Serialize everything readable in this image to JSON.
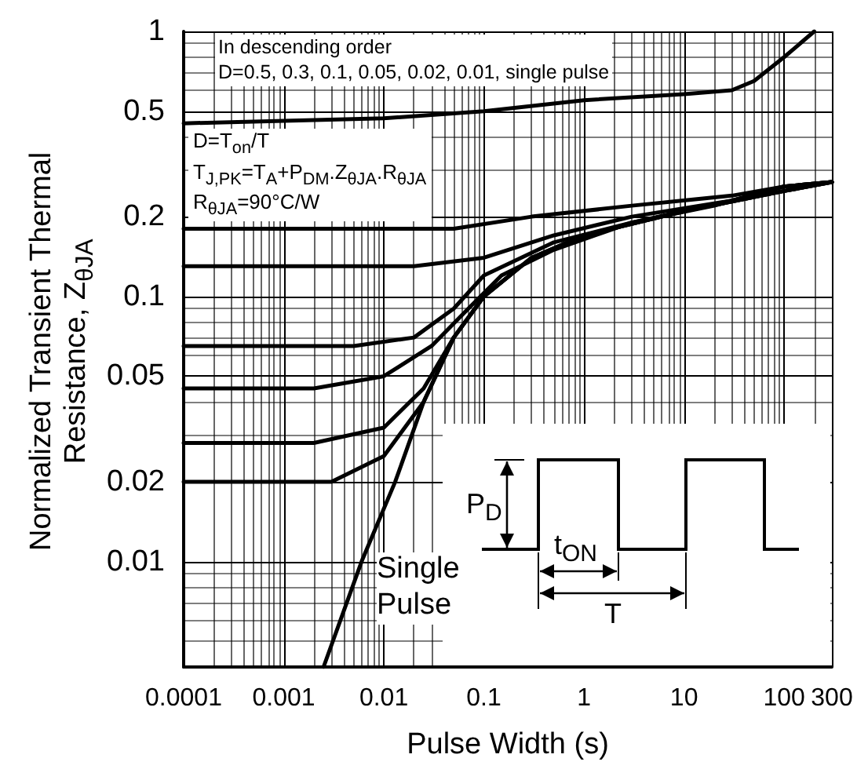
{
  "chart_data": {
    "type": "line",
    "xlabel": "Pulse Width (s)",
    "ylabel": "Normalized Transient Thermal Resistance, Z$_{θJA}$",
    "log": "xy",
    "grid": true,
    "xlim": [
      0.0001,
      300
    ],
    "xticks": [
      0.0001,
      0.001,
      0.01,
      0.1,
      1,
      10,
      100,
      300
    ],
    "ylim": [
      0.004,
      1
    ],
    "yticks": [
      0.01,
      0.02,
      0.05,
      0.1,
      0.2,
      0.5,
      1
    ],
    "annotations": [
      "In descending order",
      "D=0.5, 0.3, 0.1, 0.05, 0.02, 0.01, single pulse",
      "D=T$_{on}$/T",
      "T$_{J,PK}$=T$_{A}$+P$_{DM}$.Z$_{θJA}$.R$_{θJA}$",
      "R$_{θJA}$=90°C/W",
      "P$_{D}$",
      "t$_{ON}$",
      "T",
      "Single Pulse"
    ],
    "series": [
      {
        "color": "#000000",
        "x": [
          0.0001,
          0.001,
          0.01,
          0.1,
          1,
          10,
          30,
          50,
          100,
          200
        ],
        "values": [
          0.45,
          0.46,
          0.47,
          0.5,
          0.55,
          0.58,
          0.6,
          0.65,
          0.8,
          1
        ]
      },
      {
        "color": "#000000",
        "x": [
          0.0001,
          0.01,
          0.05,
          0.3,
          3,
          30,
          100,
          300
        ],
        "values": [
          0.18,
          0.18,
          0.18,
          0.2,
          0.22,
          0.24,
          0.26,
          0.27
        ]
      },
      {
        "color": "#000000",
        "x": [
          0.0001,
          0.01,
          0.02,
          0.1,
          0.5,
          3,
          30,
          100,
          300
        ],
        "values": [
          0.13,
          0.13,
          0.13,
          0.14,
          0.17,
          0.2,
          0.23,
          0.26,
          0.27
        ]
      },
      {
        "color": "#000000",
        "x": [
          0.0001,
          0.005,
          0.02,
          0.05,
          0.1,
          0.5,
          3,
          30,
          100,
          300
        ],
        "values": [
          0.065,
          0.065,
          0.07,
          0.09,
          0.12,
          0.16,
          0.19,
          0.23,
          0.26,
          0.27
        ]
      },
      {
        "color": "#000000",
        "x": [
          0.0001,
          0.002,
          0.01,
          0.03,
          0.07,
          0.15,
          0.5,
          3,
          20,
          100,
          300
        ],
        "values": [
          0.045,
          0.045,
          0.05,
          0.065,
          0.09,
          0.12,
          0.15,
          0.19,
          0.22,
          0.26,
          0.27
        ]
      },
      {
        "color": "#000000",
        "x": [
          0.0001,
          0.002,
          0.01,
          0.025,
          0.05,
          0.1,
          0.3,
          1,
          10,
          100,
          300
        ],
        "values": [
          0.028,
          0.028,
          0.032,
          0.045,
          0.07,
          0.1,
          0.14,
          0.17,
          0.21,
          0.25,
          0.27
        ]
      },
      {
        "color": "#000000",
        "x": [
          0.0001,
          0.003,
          0.01,
          0.025,
          0.05,
          0.1,
          0.3,
          1,
          10,
          100,
          300
        ],
        "values": [
          0.02,
          0.02,
          0.025,
          0.04,
          0.07,
          0.1,
          0.14,
          0.17,
          0.21,
          0.25,
          0.27
        ]
      },
      {
        "color": "#000000",
        "x": [
          0.0025,
          0.006,
          0.013,
          0.025,
          0.05,
          0.1,
          0.3,
          1,
          10,
          100,
          300
        ],
        "values": [
          0.004,
          0.01,
          0.02,
          0.04,
          0.07,
          0.1,
          0.14,
          0.17,
          0.21,
          0.25,
          0.27
        ]
      }
    ]
  }
}
